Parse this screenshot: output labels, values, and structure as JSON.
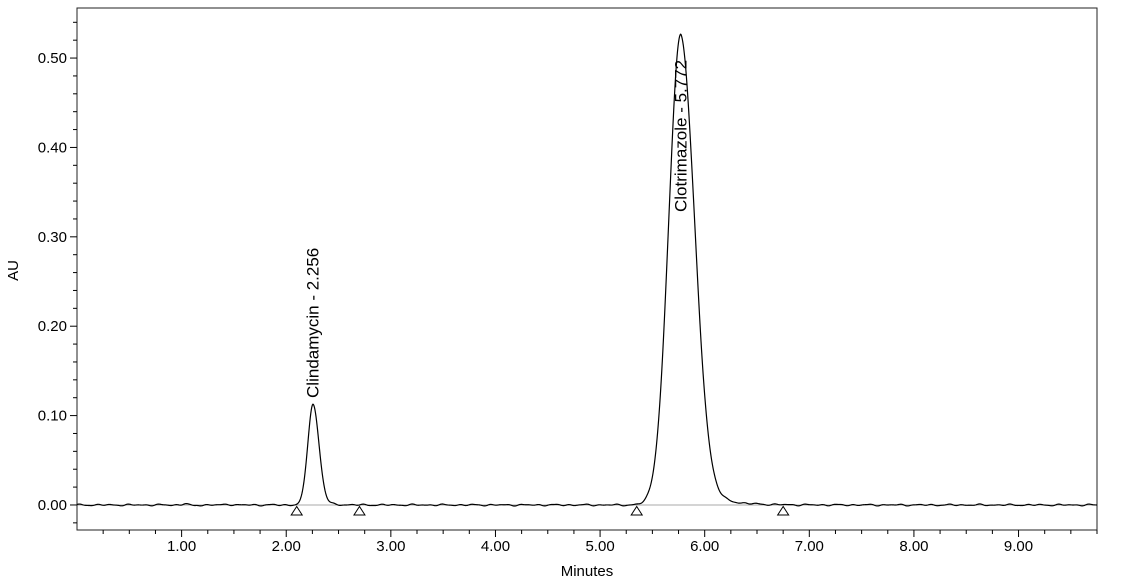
{
  "chart_data": {
    "type": "line",
    "title": "",
    "xlabel": "Minutes",
    "ylabel": "AU",
    "xlim": [
      0,
      9.75
    ],
    "ylim": [
      -0.028,
      0.556
    ],
    "x_major_ticks": [
      1,
      2,
      3,
      4,
      5,
      6,
      7,
      8,
      9
    ],
    "x_major_tick_labels": [
      "1.00",
      "2.00",
      "3.00",
      "4.00",
      "5.00",
      "6.00",
      "7.00",
      "8.00",
      "9.00"
    ],
    "x_minor_tick_step": 0.25,
    "y_major_ticks": [
      0.0,
      0.1,
      0.2,
      0.3,
      0.4,
      0.5
    ],
    "y_major_tick_labels": [
      "0.00",
      "0.10",
      "0.20",
      "0.30",
      "0.40",
      "0.50"
    ],
    "y_minor_tick_step": 0.02,
    "grid": false,
    "legend": "none",
    "trace_color": "#000000",
    "frame_color": "#222222",
    "baseline_au": 0.0,
    "baseline_color": "#a8a8a8",
    "peaks": [
      {
        "name": "Clindamycin",
        "label": "Clindamycin - 2.256",
        "retention_time_min": 2.256,
        "height_au": 0.113,
        "sigma_min": 0.05,
        "tail_tau_min": 0.09,
        "tail_fraction": 0.06
      },
      {
        "name": "Clotrimazole",
        "label": "Clotrimazole - 5.772",
        "retention_time_min": 5.772,
        "height_au": 0.527,
        "sigma_min": 0.115,
        "tail_tau_min": 0.2,
        "tail_fraction": 0.08
      }
    ],
    "integration_markers_min": [
      2.1,
      2.7,
      5.35,
      6.75
    ]
  }
}
